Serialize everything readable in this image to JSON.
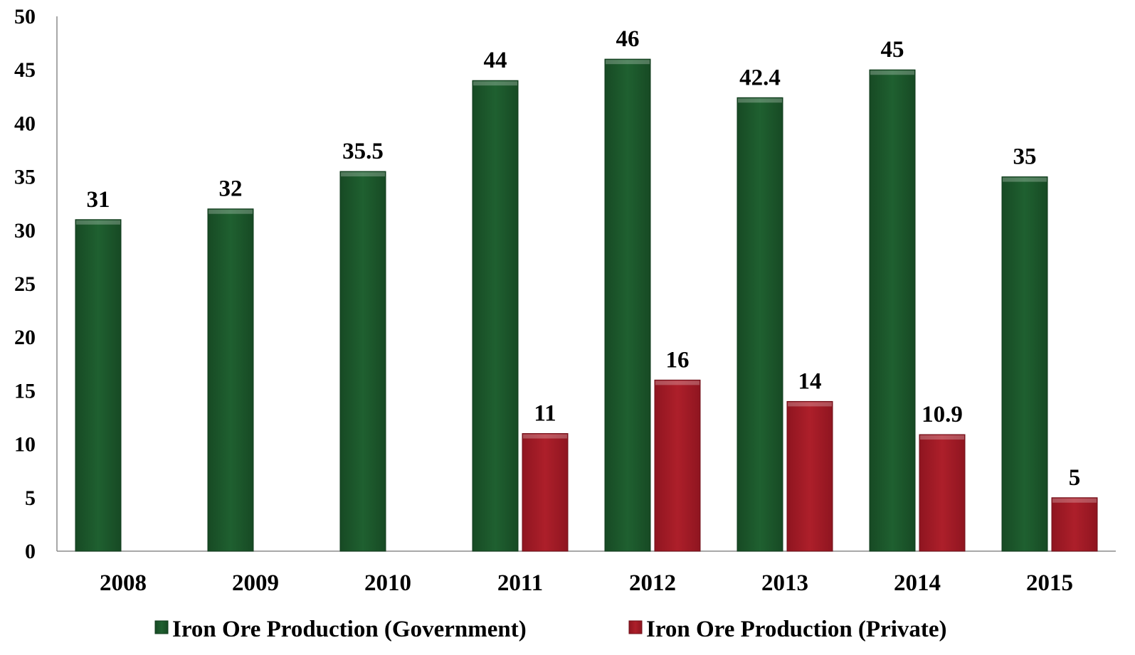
{
  "chart_data": {
    "type": "bar",
    "categories": [
      "2008",
      "2009",
      "2010",
      "2011",
      "2012",
      "2013",
      "2014",
      "2015"
    ],
    "series": [
      {
        "name": "Iron Ore Production (Government)",
        "color": "#1e5c2e",
        "values": [
          31,
          32,
          35.5,
          44,
          46,
          42.4,
          45,
          35
        ],
        "labels": [
          "31",
          "32",
          "35.5",
          "44",
          "46",
          "42.4",
          "45",
          "35"
        ]
      },
      {
        "name": "Iron Ore Production (Private)",
        "color": "#a81c26",
        "values": [
          null,
          null,
          null,
          11,
          16,
          14,
          10.9,
          5
        ],
        "labels": [
          "",
          "",
          "",
          "11",
          "16",
          "14",
          "10.9",
          "5"
        ]
      }
    ],
    "ylim": [
      0,
      50
    ],
    "yticks": [
      "0",
      "5",
      "10",
      "15",
      "20",
      "25",
      "30",
      "35",
      "40",
      "45",
      "50"
    ],
    "legend_position": "bottom",
    "grid": false,
    "title": "",
    "xlabel": "",
    "ylabel": ""
  }
}
